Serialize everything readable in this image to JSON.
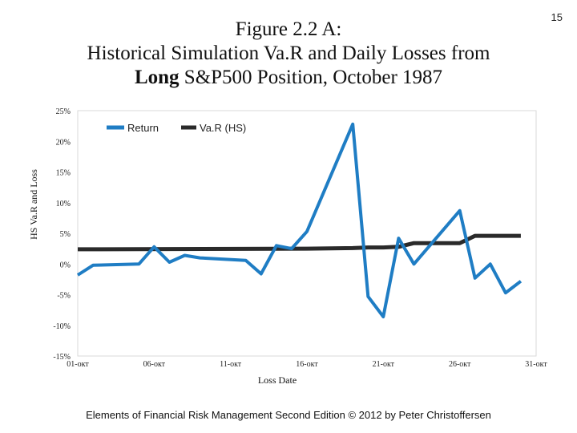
{
  "page_number": "15",
  "title": {
    "line1": "Figure 2.2 A:",
    "line2": "Historical Simulation Va.R and Daily Losses from",
    "line3_bold": "Long",
    "line3_rest": " S&P500 Position, October 1987"
  },
  "footer": "Elements of Financial Risk Management Second Edition © 2012 by Peter Christoffersen",
  "chart_data": {
    "type": "line",
    "xlabel": "Loss Date",
    "ylabel": "HS Va.R and Loss",
    "ylim": [
      -0.15,
      0.25
    ],
    "y_ticks": [
      {
        "value": 0.25,
        "label": "25%"
      },
      {
        "value": 0.2,
        "label": "20%"
      },
      {
        "value": 0.15,
        "label": "15%"
      },
      {
        "value": 0.1,
        "label": "10%"
      },
      {
        "value": 0.05,
        "label": "5%"
      },
      {
        "value": 0.0,
        "label": "0%"
      },
      {
        "value": -0.05,
        "label": "-5%"
      },
      {
        "value": -0.1,
        "label": "-10%"
      },
      {
        "value": -0.15,
        "label": "-15%"
      }
    ],
    "x_range": [
      "1987-10-01",
      "1987-10-31"
    ],
    "x_ticks": [
      {
        "date": "1987-10-01",
        "label": "01-окт"
      },
      {
        "date": "1987-10-06",
        "label": "06-окт"
      },
      {
        "date": "1987-10-11",
        "label": "11-окт"
      },
      {
        "date": "1987-10-16",
        "label": "16-окт"
      },
      {
        "date": "1987-10-21",
        "label": "21-окт"
      },
      {
        "date": "1987-10-26",
        "label": "26-окт"
      },
      {
        "date": "1987-10-31",
        "label": "31-окт"
      }
    ],
    "legend_position": "top-left inside",
    "grid": false,
    "series": [
      {
        "name": "Return",
        "color": "#1f7dc4",
        "points": [
          {
            "x": "1987-10-01",
            "y": -0.018
          },
          {
            "x": "1987-10-02",
            "y": -0.002
          },
          {
            "x": "1987-10-05",
            "y": 0.0
          },
          {
            "x": "1987-10-06",
            "y": 0.028
          },
          {
            "x": "1987-10-07",
            "y": 0.003
          },
          {
            "x": "1987-10-08",
            "y": 0.014
          },
          {
            "x": "1987-10-09",
            "y": 0.01
          },
          {
            "x": "1987-10-12",
            "y": 0.006
          },
          {
            "x": "1987-10-13",
            "y": -0.016
          },
          {
            "x": "1987-10-14",
            "y": 0.03
          },
          {
            "x": "1987-10-15",
            "y": 0.025
          },
          {
            "x": "1987-10-16",
            "y": 0.053
          },
          {
            "x": "1987-10-19",
            "y": 0.228
          },
          {
            "x": "1987-10-20",
            "y": -0.053
          },
          {
            "x": "1987-10-21",
            "y": -0.086
          },
          {
            "x": "1987-10-22",
            "y": 0.042
          },
          {
            "x": "1987-10-23",
            "y": 0.0
          },
          {
            "x": "1987-10-26",
            "y": 0.087
          },
          {
            "x": "1987-10-27",
            "y": -0.023
          },
          {
            "x": "1987-10-28",
            "y": 0.0
          },
          {
            "x": "1987-10-29",
            "y": -0.047
          },
          {
            "x": "1987-10-30",
            "y": -0.028
          }
        ]
      },
      {
        "name": "Va.R (HS)",
        "color": "#2a2a2a",
        "points": [
          {
            "x": "1987-10-01",
            "y": 0.024
          },
          {
            "x": "1987-10-16",
            "y": 0.025
          },
          {
            "x": "1987-10-19",
            "y": 0.026
          },
          {
            "x": "1987-10-20",
            "y": 0.027
          },
          {
            "x": "1987-10-21",
            "y": 0.027
          },
          {
            "x": "1987-10-22",
            "y": 0.028
          },
          {
            "x": "1987-10-23",
            "y": 0.034
          },
          {
            "x": "1987-10-26",
            "y": 0.034
          },
          {
            "x": "1987-10-27",
            "y": 0.046
          },
          {
            "x": "1987-10-30",
            "y": 0.046
          }
        ]
      }
    ]
  }
}
